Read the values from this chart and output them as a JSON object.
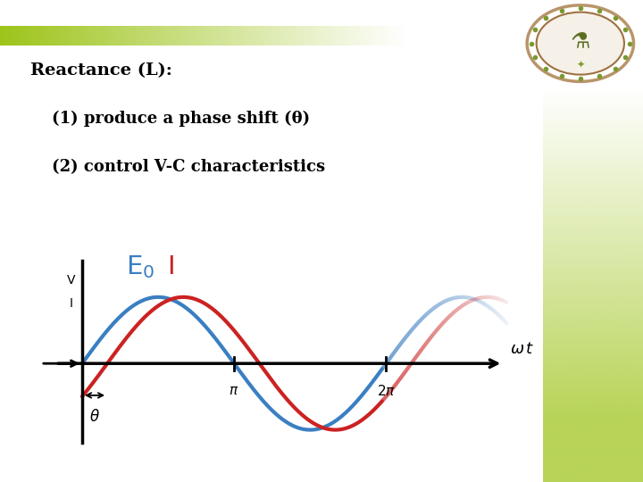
{
  "background_color": "#ffffff",
  "top_stripe_color": "#9dc41a",
  "right_sidebar_color": "#b8d458",
  "title_text": "Reactance (L):",
  "line1": "(1) produce a phase shift (θ)",
  "line2": "(2) control V-C characteristics",
  "wave_color_blue": "#3a7fc1",
  "wave_color_red": "#cc2222",
  "theta_shift": 0.52,
  "x_end": 8.8,
  "y_lim": [
    -1.35,
    1.7
  ],
  "x_lim": [
    -0.9,
    9.2
  ],
  "fade_start": 6.2
}
